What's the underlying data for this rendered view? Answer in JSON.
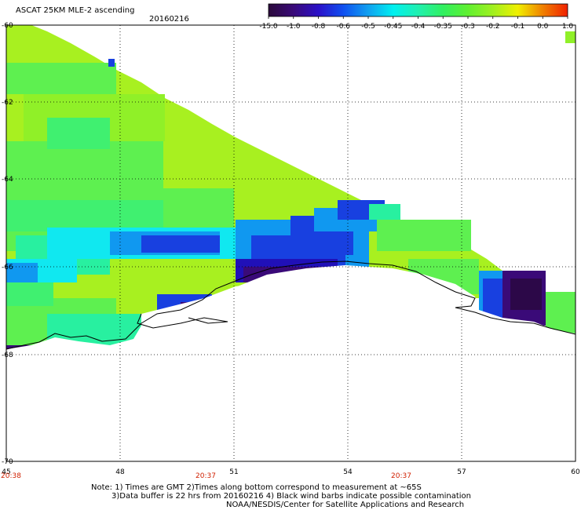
{
  "header": {
    "title": "ASCAT 25KM MLE-2 ascending",
    "date": "20160216"
  },
  "colorbar": {
    "labels": [
      "-15.0",
      "-1.0",
      "-0.8",
      "-0.6",
      "-0.5",
      "-0.45",
      "-0.4",
      "-0.35",
      "-0.3",
      "-0.2",
      "-0.1",
      "0.0",
      "1.0"
    ],
    "colors": [
      "#2a0a3a",
      "#3a0a78",
      "#2a10c8",
      "#1050f0",
      "#10a0f0",
      "#00f0f0",
      "#20f0b0",
      "#30f060",
      "#60f030",
      "#a0f020",
      "#f0f000",
      "#f08000",
      "#f02000"
    ]
  },
  "axes": {
    "x_ticks": [
      "45",
      "48",
      "51",
      "54",
      "57",
      "60"
    ],
    "y_ticks": [
      "-60",
      "-62",
      "-64",
      "-66",
      "-68",
      "-70"
    ],
    "time_labels": [
      "20:38",
      "20:37",
      "20:37"
    ]
  },
  "notes": [
    "Note: 1) Times are GMT 2)Times along bottom correspond to measurement at ~65S",
    "3)Data buffer is 22 hrs from 20160216 4) Black wind barbs indicate possible contamination",
    "NOAA/NESDIS/Center for Satellite Applications and Research"
  ]
}
